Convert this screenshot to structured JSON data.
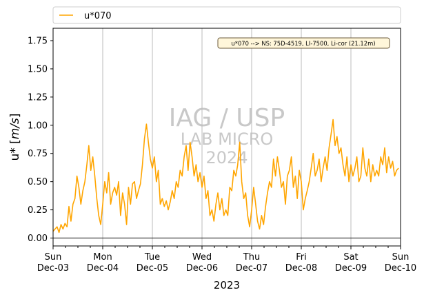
{
  "chart_data": {
    "type": "line",
    "title": "",
    "xlabel": "2023",
    "ylabel": "u* [m/s]",
    "ylabel_main": "u* [",
    "ylabel_unit": "m/s",
    "ylabel_end": "]",
    "ylim": [
      -0.07,
      1.86
    ],
    "yticks": [
      0.0,
      0.25,
      0.5,
      0.75,
      1.0,
      1.25,
      1.5,
      1.75
    ],
    "ytick_labels": [
      "0.00",
      "0.25",
      "0.50",
      "0.75",
      "1.00",
      "1.25",
      "1.50",
      "1.75"
    ],
    "xlim": [
      "2023-12-03",
      "2023-12-10"
    ],
    "xticks": [
      {
        "day": "Sun",
        "date": "Dec-03"
      },
      {
        "day": "Mon",
        "date": "Dec-04"
      },
      {
        "day": "Tue",
        "date": "Dec-05"
      },
      {
        "day": "Wed",
        "date": "Dec-06"
      },
      {
        "day": "Thu",
        "date": "Dec-07"
      },
      {
        "day": "Fri",
        "date": "Dec-08"
      },
      {
        "day": "Sat",
        "date": "Dec-09"
      },
      {
        "day": "Sun",
        "date": "Dec-10"
      }
    ],
    "grid": "vertical at day boundaries",
    "zero_line": true,
    "legend_position": "above plot, left",
    "annotation": "u*070 --> NS: 75D-4519, LI-7500, Li-cor (21.12m)",
    "watermark": [
      "IAG / USP",
      "LAB MICRO",
      "2024"
    ],
    "series": [
      {
        "name": "u*070",
        "color": "#ffa500",
        "x_days_from_2023-12-03": [
          0.0,
          0.04,
          0.08,
          0.12,
          0.16,
          0.2,
          0.24,
          0.28,
          0.32,
          0.36,
          0.4,
          0.44,
          0.48,
          0.52,
          0.56,
          0.6,
          0.64,
          0.68,
          0.72,
          0.76,
          0.8,
          0.84,
          0.88,
          0.92,
          0.96,
          1.0,
          1.04,
          1.08,
          1.12,
          1.16,
          1.2,
          1.24,
          1.28,
          1.32,
          1.36,
          1.4,
          1.44,
          1.48,
          1.52,
          1.56,
          1.6,
          1.64,
          1.68,
          1.72,
          1.76,
          1.8,
          1.84,
          1.88,
          1.92,
          1.96,
          2.0,
          2.04,
          2.08,
          2.12,
          2.16,
          2.2,
          2.24,
          2.28,
          2.32,
          2.36,
          2.4,
          2.44,
          2.48,
          2.52,
          2.56,
          2.6,
          2.64,
          2.68,
          2.72,
          2.76,
          2.8,
          2.84,
          2.88,
          2.92,
          2.96,
          3.0,
          3.04,
          3.08,
          3.12,
          3.16,
          3.2,
          3.24,
          3.28,
          3.32,
          3.36,
          3.4,
          3.44,
          3.48,
          3.52,
          3.56,
          3.6,
          3.64,
          3.68,
          3.72,
          3.76,
          3.8,
          3.84,
          3.88,
          3.92,
          3.96,
          4.0,
          4.04,
          4.08,
          4.12,
          4.16,
          4.2,
          4.24,
          4.28,
          4.32,
          4.36,
          4.4,
          4.44,
          4.48,
          4.52,
          4.56,
          4.6,
          4.64,
          4.68,
          4.72,
          4.76,
          4.8,
          4.84,
          4.88,
          4.92,
          4.96,
          5.0,
          5.04,
          5.08,
          5.12,
          5.16,
          5.2,
          5.24,
          5.28,
          5.32,
          5.36,
          5.4,
          5.44,
          5.48,
          5.52,
          5.56,
          5.6,
          5.64,
          5.68,
          5.72,
          5.76,
          5.8,
          5.84,
          5.88,
          5.92,
          5.96,
          6.0,
          6.04,
          6.08,
          6.12,
          6.16,
          6.2,
          6.24,
          6.28,
          6.32,
          6.36,
          6.4,
          6.44,
          6.48,
          6.52,
          6.56,
          6.6,
          6.64,
          6.68,
          6.72,
          6.76,
          6.8,
          6.84,
          6.88,
          6.92,
          6.96,
          7.0
        ],
        "values": [
          0.06,
          0.08,
          0.1,
          0.05,
          0.12,
          0.08,
          0.13,
          0.1,
          0.28,
          0.15,
          0.3,
          0.35,
          0.55,
          0.45,
          0.3,
          0.42,
          0.5,
          0.65,
          0.82,
          0.6,
          0.72,
          0.55,
          0.35,
          0.2,
          0.12,
          0.3,
          0.5,
          0.4,
          0.58,
          0.3,
          0.4,
          0.45,
          0.38,
          0.5,
          0.2,
          0.4,
          0.3,
          0.12,
          0.45,
          0.3,
          0.48,
          0.5,
          0.35,
          0.42,
          0.48,
          0.65,
          0.88,
          1.01,
          0.85,
          0.7,
          0.62,
          0.72,
          0.5,
          0.6,
          0.3,
          0.35,
          0.28,
          0.33,
          0.25,
          0.32,
          0.42,
          0.35,
          0.5,
          0.45,
          0.6,
          0.55,
          0.72,
          0.82,
          0.6,
          0.85,
          0.72,
          0.55,
          0.65,
          0.5,
          0.58,
          0.45,
          0.55,
          0.35,
          0.42,
          0.2,
          0.25,
          0.15,
          0.3,
          0.4,
          0.25,
          0.35,
          0.2,
          0.25,
          0.2,
          0.45,
          0.42,
          0.6,
          0.55,
          0.65,
          0.85,
          0.5,
          0.35,
          0.4,
          0.2,
          0.1,
          0.25,
          0.45,
          0.3,
          0.15,
          0.08,
          0.2,
          0.12,
          0.28,
          0.4,
          0.5,
          0.45,
          0.7,
          0.55,
          0.72,
          0.6,
          0.45,
          0.5,
          0.3,
          0.55,
          0.6,
          0.72,
          0.45,
          0.55,
          0.35,
          0.6,
          0.5,
          0.25,
          0.35,
          0.42,
          0.5,
          0.62,
          0.75,
          0.55,
          0.6,
          0.7,
          0.5,
          0.62,
          0.72,
          0.6,
          0.8,
          0.92,
          1.05,
          0.82,
          0.9,
          0.75,
          0.8,
          0.65,
          0.55,
          0.72,
          0.5,
          0.65,
          0.55,
          0.62,
          0.72,
          0.5,
          0.55,
          0.8,
          0.62,
          0.55,
          0.7,
          0.5,
          0.65,
          0.55,
          0.6,
          0.55,
          0.72,
          0.65,
          0.8,
          0.58,
          0.72,
          0.62,
          0.68,
          0.55,
          0.6,
          0.62
        ]
      }
    ]
  }
}
